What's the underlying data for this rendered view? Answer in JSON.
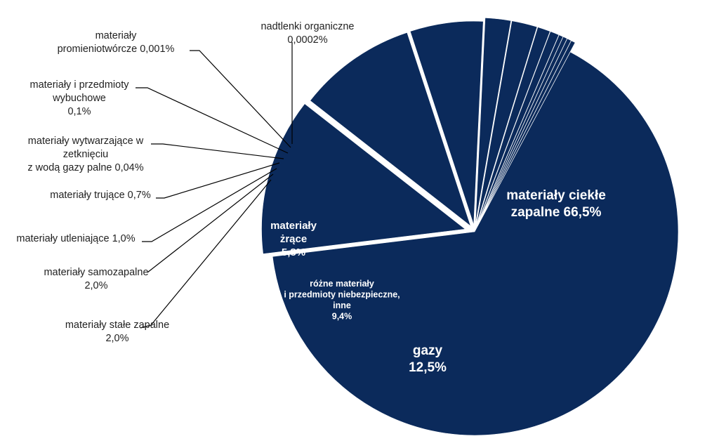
{
  "chart_data": {
    "type": "pie",
    "title": "",
    "colors": {
      "slice": "#0b2a5b",
      "background": "#ffffff",
      "text_outside": "#222222",
      "text_inside": "#ffffff",
      "leader": "#000000"
    },
    "slices": [
      {
        "name": "materiały ciekłe zapalne",
        "value": 66.5,
        "label_lines": [
          "materiały ciekłe",
          "zapalne 66,5%"
        ]
      },
      {
        "name": "gazy",
        "value": 12.5,
        "label_lines": [
          "gazy",
          "12,5%"
        ]
      },
      {
        "name": "różne materiały i przedmioty niebezpieczne, inne",
        "value": 9.4,
        "label_lines": [
          "różne materiały",
          "i przedmioty niebezpieczne,",
          "inne",
          "9,4%"
        ]
      },
      {
        "name": "materiały żrące",
        "value": 5.8,
        "label_lines": [
          "materiały",
          "żrące",
          "5,8%"
        ]
      },
      {
        "name": "materiały stałe zapalne",
        "value": 2.0,
        "label_lines": [
          "materiały stałe zapalne",
          "2,0%"
        ]
      },
      {
        "name": "materiały samozapalne",
        "value": 2.0,
        "label_lines": [
          "materiały samozapalne",
          "2,0%"
        ]
      },
      {
        "name": "materiały utleniające",
        "value": 1.0,
        "label_lines": [
          "materiały utleniające 1,0%"
        ]
      },
      {
        "name": "materiały trujące",
        "value": 0.7,
        "label_lines": [
          "materiały trujące 0,7%"
        ]
      },
      {
        "name": "materiały wytwarzające w zetknięciu z wodą gazy palne",
        "value": 0.04,
        "label_lines": [
          "materiały wytwarzające w",
          "zetknięciu",
          "z wodą gazy palne 0,04%"
        ]
      },
      {
        "name": "materiały i przedmioty wybuchowe",
        "value": 0.1,
        "label_lines": [
          "materiały i przedmioty",
          "wybuchowe",
          "0,1%"
        ]
      },
      {
        "name": "materiały promieniotwórcze",
        "value": 0.001,
        "label_lines": [
          "materiały",
          "promieniotwórcze 0,001%"
        ]
      },
      {
        "name": "nadtlenki organiczne",
        "value": 0.0002,
        "label_lines": [
          "nadtlenki organiczne",
          "0,0002%"
        ]
      }
    ]
  }
}
